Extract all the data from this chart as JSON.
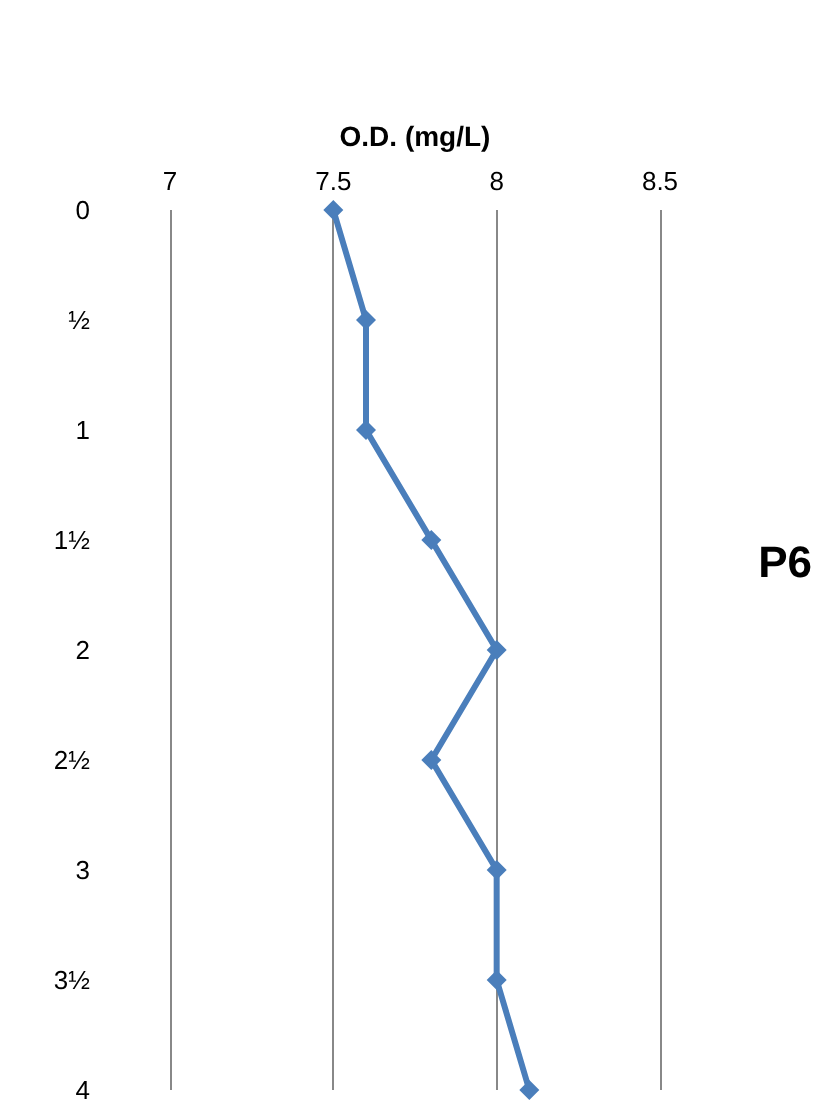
{
  "chart_data": {
    "type": "line",
    "orientation": "horizontal",
    "xlabel": "O.D. (mg/L)",
    "categories": [
      "0",
      "½",
      "1",
      "1½",
      "2",
      "2½",
      "3",
      "3½",
      "4"
    ],
    "series": [
      {
        "color": "#4a7ebb",
        "values": [
          7.5,
          7.6,
          7.6,
          7.8,
          8.0,
          7.8,
          8.0,
          8.0,
          8.1
        ]
      }
    ],
    "xlim": [
      7,
      8.5
    ],
    "xticks": [
      7,
      7.5,
      8,
      8.5
    ],
    "grid": "x",
    "marker": "diamond",
    "line_style": "solid",
    "annotations": [
      "P6"
    ]
  }
}
